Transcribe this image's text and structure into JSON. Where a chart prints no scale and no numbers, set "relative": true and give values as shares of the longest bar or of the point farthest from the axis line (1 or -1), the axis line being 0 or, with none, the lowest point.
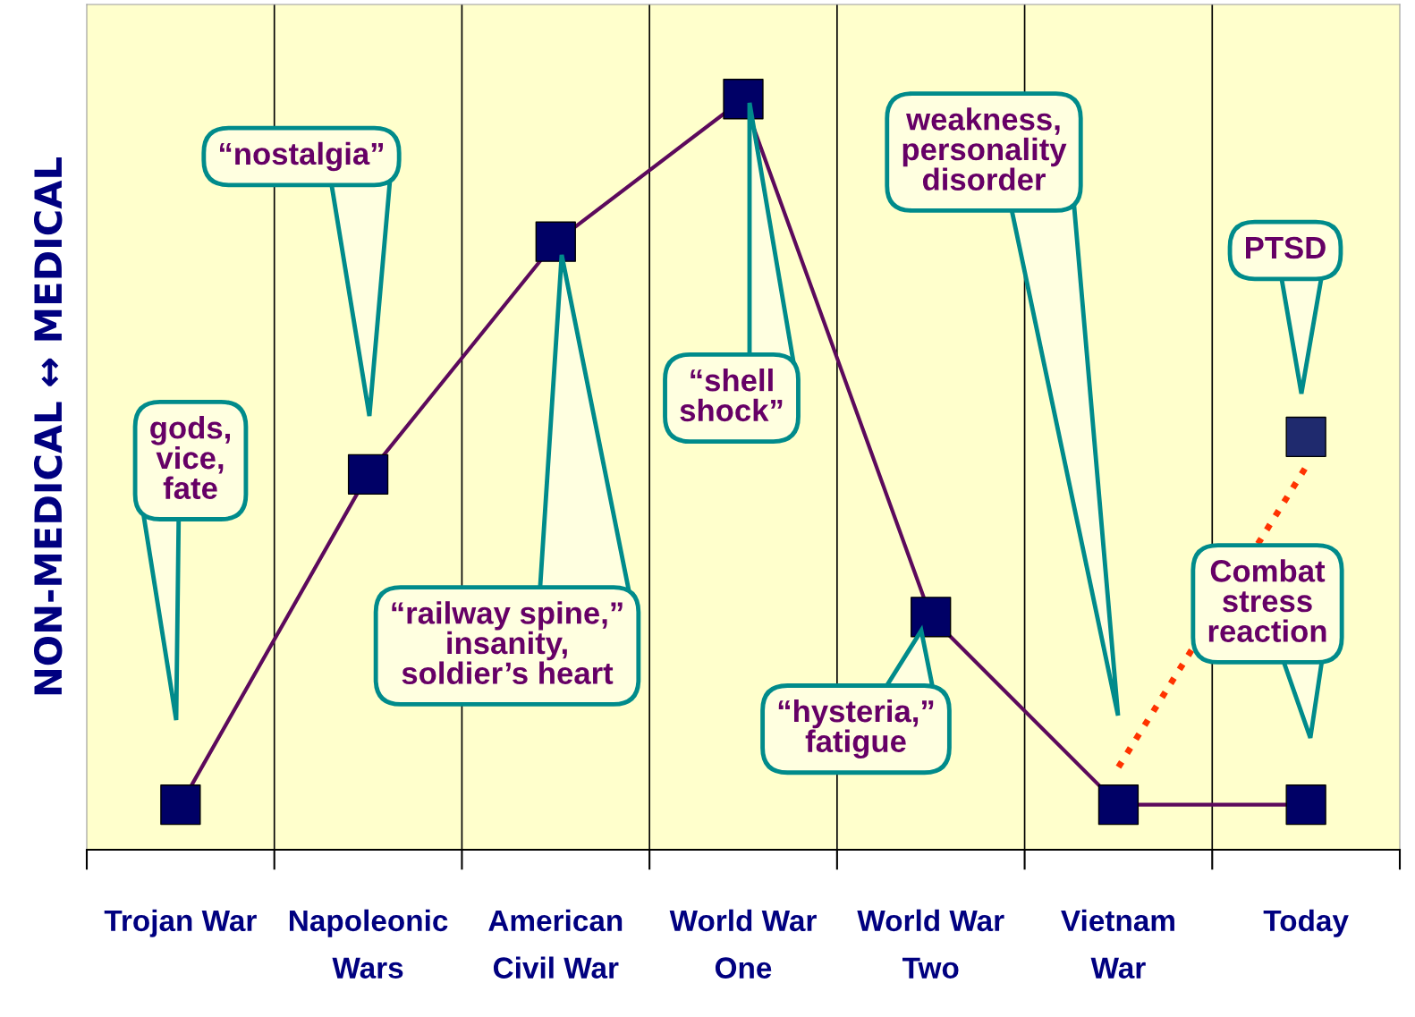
{
  "chart_data": {
    "type": "line",
    "relative": true,
    "ylabel": "NON-MEDICAL ↔ MEDICAL",
    "grid": "x",
    "categories": [
      "Trojan War",
      "Napoleonic\nWars",
      "American\nCivil War",
      "World War\nOne",
      "World War\nTwo",
      "Vietnam\nWar",
      "Today"
    ],
    "series": [
      {
        "color": "#5c0a5c",
        "marker": "none",
        "line_style": "solid",
        "values": [
          0.06,
          0.5,
          0.81,
          1.0,
          0.31,
          0.06,
          0.06
        ]
      },
      {
        "type": "scatter",
        "marker": "square",
        "color": "#000066",
        "values": [
          0.06,
          0.5,
          0.81,
          1.0,
          0.31,
          0.06,
          0.06
        ]
      },
      {
        "type": "scatter",
        "marker": "square",
        "color": "#1f2a6e",
        "x": [
          "Today"
        ],
        "values": [
          0.55
        ]
      },
      {
        "type": "line",
        "color": "#ff3300",
        "marker": "none",
        "line_style": "dotted",
        "x": [
          "Vietnam\nWar",
          "Today"
        ],
        "values": [
          0.11,
          0.51
        ]
      }
    ],
    "annotations": [
      "gods,\nvice,\nfate",
      "“nostalgia”",
      "“railway spine,”\ninsanity,\nsoldier’s heart",
      "“shell\nshock”",
      "“hysteria,”\nfatigue",
      "weakness,\npersonality\ndisorder",
      "PTSD",
      "Combat\nstress\nreaction"
    ]
  }
}
